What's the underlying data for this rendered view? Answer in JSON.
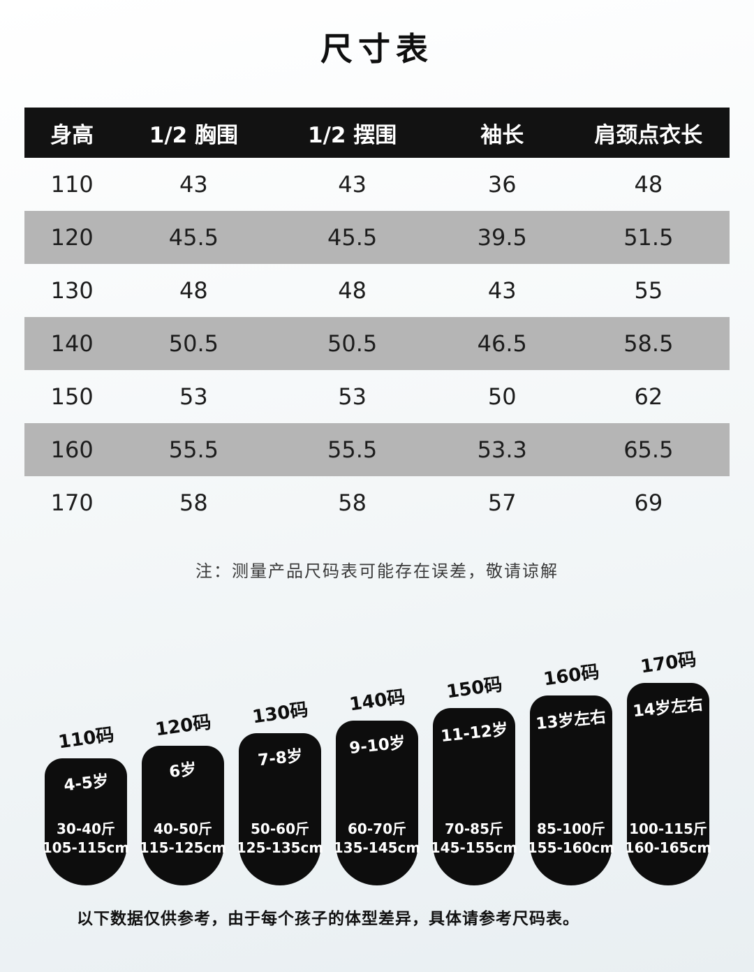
{
  "title": "尺寸表",
  "table": {
    "headers": [
      "身高",
      "1/2 胸围",
      "1/2 摆围",
      "袖长",
      "肩颈点衣长"
    ],
    "rows": [
      [
        "110",
        "43",
        "43",
        "36",
        "48"
      ],
      [
        "120",
        "45.5",
        "45.5",
        "39.5",
        "51.5"
      ],
      [
        "130",
        "48",
        "48",
        "43",
        "55"
      ],
      [
        "140",
        "50.5",
        "50.5",
        "46.5",
        "58.5"
      ],
      [
        "150",
        "53",
        "53",
        "50",
        "62"
      ],
      [
        "160",
        "55.5",
        "55.5",
        "53.3",
        "65.5"
      ],
      [
        "170",
        "58",
        "58",
        "57",
        "69"
      ]
    ],
    "note": "注：测量产品尺码表可能存在误差，敬请谅解"
  },
  "size_guide": {
    "items": [
      {
        "size": "110码",
        "age": "4-5岁",
        "weight": "30-40斤",
        "height": "105-115cm"
      },
      {
        "size": "120码",
        "age": "6岁",
        "weight": "40-50斤",
        "height": "115-125cm"
      },
      {
        "size": "130码",
        "age": "7-8岁",
        "weight": "50-60斤",
        "height": "125-135cm"
      },
      {
        "size": "140码",
        "age": "9-10岁",
        "weight": "60-70斤",
        "height": "135-145cm"
      },
      {
        "size": "150码",
        "age": "11-12岁",
        "weight": "70-85斤",
        "height": "145-155cm"
      },
      {
        "size": "160码",
        "age": "13岁左右",
        "weight": "85-100斤",
        "height": "155-160cm"
      },
      {
        "size": "170码",
        "age": "14岁左右",
        "weight": "100-115斤",
        "height": "160-165cm"
      }
    ],
    "footnote": "以下数据仅供参考，由于每个孩子的体型差异，具体请参考尺码表。"
  },
  "colors": {
    "header_bg": "#121212",
    "row_alt_bg": "#b5b5b5",
    "capsule_bg": "#0d0d0d"
  }
}
